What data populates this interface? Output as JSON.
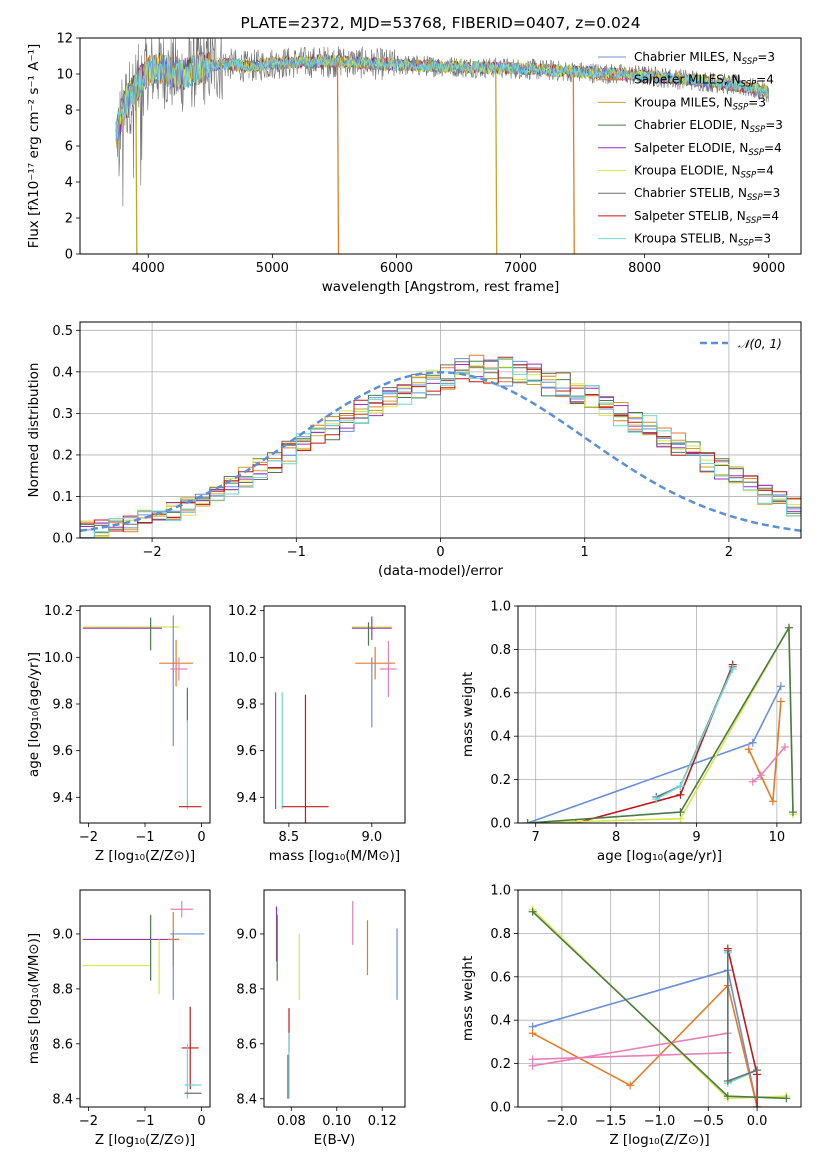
{
  "colors": {
    "Chabrier MILES": "#6a8fd8",
    "Salpeter MILES": "#e57b27",
    "Kroupa MILES": "#c9a227",
    "Chabrier ELODIE": "#4a7a4a",
    "Salpeter ELODIE": "#9a30c0",
    "Kroupa ELODIE": "#d8e84a",
    "Chabrier STELIB": "#707070",
    "Salpeter STELIB": "#c01818",
    "Kroupa STELIB": "#6fd6d6",
    "pink": "#e880b8",
    "gauss": "#5b8fd6"
  },
  "chart_data": [
    {
      "id": "spectrum",
      "type": "line",
      "title": "PLATE=2372, MJD=53768, FIBERID=0407, z=0.024",
      "xlabel": "wavelength [Angstrom, rest frame]",
      "ylabel": "Flux [fλ10⁻¹⁷ erg cm⁻² s⁻¹ A⁻¹]",
      "xlim": [
        3450,
        9260
      ],
      "ylim": [
        0,
        12
      ],
      "xticks": [
        4000,
        5000,
        6000,
        7000,
        8000,
        9000
      ],
      "yticks": [
        0,
        2,
        4,
        6,
        8,
        10,
        12
      ],
      "legend_position": "top-right",
      "continuum_x": [
        3740,
        3800,
        3900,
        4000,
        4100,
        4250,
        4400,
        4600,
        4800,
        5000,
        5500,
        6000,
        6500,
        7000,
        7500,
        8000,
        8500,
        8800,
        9000
      ],
      "continuum_y": [
        6.5,
        8.2,
        9.3,
        10.2,
        10.3,
        9.9,
        10.3,
        10.6,
        10.4,
        10.6,
        10.7,
        10.5,
        10.4,
        10.3,
        10.1,
        9.9,
        9.6,
        9.3,
        9.0
      ],
      "dropouts": [
        {
          "x": 3900,
          "to": 0,
          "series": "Kroupa MILES"
        },
        {
          "x": 5525,
          "to": 0,
          "series": "Salpeter MILES"
        },
        {
          "x": 6800,
          "to": 0,
          "series": "Kroupa MILES"
        },
        {
          "x": 7425,
          "to": 0,
          "series": "Salpeter MILES"
        }
      ],
      "legend": [
        {
          "name": "Chabrier MILES, N",
          "sub": "SSP",
          "suf": "=3"
        },
        {
          "name": "Salpeter MILES, N",
          "sub": "SSP",
          "suf": "=4"
        },
        {
          "name": "Kroupa MILES, N",
          "sub": "SSP",
          "suf": "=3"
        },
        {
          "name": "Chabrier ELODIE, N",
          "sub": "SSP",
          "suf": "=3"
        },
        {
          "name": "Salpeter ELODIE, N",
          "sub": "SSP",
          "suf": "=4"
        },
        {
          "name": "Kroupa ELODIE, N",
          "sub": "SSP",
          "suf": "=4"
        },
        {
          "name": "Chabrier STELIB, N",
          "sub": "SSP",
          "suf": "=3"
        },
        {
          "name": "Salpeter STELIB, N",
          "sub": "SSP",
          "suf": "=4"
        },
        {
          "name": "Kroupa STELIB, N",
          "sub": "SSP",
          "suf": "=3"
        }
      ]
    },
    {
      "id": "residuals",
      "type": "histogram",
      "xlabel": "(data-model)/error",
      "ylabel": "Normed distribution",
      "xlim": [
        -2.5,
        2.5
      ],
      "ylim": [
        0,
        0.52
      ],
      "xticks": [
        -2,
        -1,
        0,
        1,
        2
      ],
      "yticks": [
        0.0,
        0.1,
        0.2,
        0.3,
        0.4,
        0.5
      ],
      "grid": true,
      "bin_edges_start": -2.5,
      "bin_width": 0.1,
      "base_values": [
        0.02,
        0.025,
        0.03,
        0.035,
        0.045,
        0.055,
        0.065,
        0.075,
        0.09,
        0.105,
        0.125,
        0.145,
        0.165,
        0.185,
        0.205,
        0.225,
        0.245,
        0.265,
        0.285,
        0.305,
        0.32,
        0.335,
        0.35,
        0.365,
        0.375,
        0.39,
        0.4,
        0.405,
        0.405,
        0.4,
        0.395,
        0.385,
        0.375,
        0.365,
        0.35,
        0.335,
        0.32,
        0.3,
        0.285,
        0.265,
        0.245,
        0.225,
        0.205,
        0.185,
        0.165,
        0.145,
        0.125,
        0.105,
        0.09,
        0.075
      ],
      "gaussian_label": "𝒩(0, 1)",
      "legend_position": "top-right"
    },
    {
      "id": "age-Z",
      "type": "errorbar",
      "xlabel": "Z [log₁₀(Z/Z⊙)]",
      "ylabel": "age  [log₁₀(age/yr)]",
      "xlim": [
        -2.15,
        0.15
      ],
      "ylim": [
        9.29,
        10.22
      ],
      "xticks": [
        -2,
        -1,
        0
      ],
      "yticks": [
        9.4,
        9.6,
        9.8,
        10.0,
        10.2
      ],
      "points": [
        {
          "x": -1.25,
          "y": 10.13,
          "xerr": 0.85,
          "yerr": 0.0,
          "c": "Kroupa ELODIE"
        },
        {
          "x": -1.4,
          "y": 10.125,
          "xerr": 0.7,
          "yerr": 0.0,
          "c": "Salpeter ELODIE"
        },
        {
          "x": -0.9,
          "y": 10.1,
          "xerr": 0.0,
          "yerr": 0.07,
          "c": "Chabrier ELODIE"
        },
        {
          "x": -0.45,
          "y": 9.975,
          "xerr": 0.3,
          "yerr": 0.1,
          "c": "Salpeter MILES"
        },
        {
          "x": -0.5,
          "y": 9.9,
          "xerr": 0.0,
          "yerr": 0.28,
          "c": "Chabrier MILES"
        },
        {
          "x": -0.4,
          "y": 9.95,
          "xerr": 0.15,
          "yerr": 0.05,
          "c": "pink"
        },
        {
          "x": -0.25,
          "y": 9.6,
          "xerr": 0.0,
          "yerr": 0.25,
          "c": "Kroupa STELIB"
        },
        {
          "x": -0.2,
          "y": 9.36,
          "xerr": 0.2,
          "yerr": 0.0,
          "c": "Salpeter STELIB"
        },
        {
          "x": -0.25,
          "y": 9.8,
          "xerr": 0.0,
          "yerr": 0.07,
          "c": "Chabrier STELIB"
        }
      ]
    },
    {
      "id": "age-mass",
      "type": "errorbar",
      "xlabel": "mass [log₁₀(M/M⊙)]",
      "ylabel": "",
      "xlim": [
        8.35,
        9.2
      ],
      "ylim": [
        9.29,
        10.22
      ],
      "xticks": [
        8.5,
        9.0
      ],
      "yticks": [
        9.4,
        9.6,
        9.8,
        10.0,
        10.2
      ],
      "points": [
        {
          "x": 9.0,
          "y": 10.13,
          "xerr": 0.12,
          "yerr": 0.0,
          "c": "Kroupa ELODIE"
        },
        {
          "x": 9.0,
          "y": 10.125,
          "xerr": 0.12,
          "yerr": 0.05,
          "c": "Salpeter ELODIE"
        },
        {
          "x": 8.98,
          "y": 10.1,
          "xerr": 0.0,
          "yerr": 0.05,
          "c": "Chabrier ELODIE"
        },
        {
          "x": 9.02,
          "y": 9.975,
          "xerr": 0.12,
          "yerr": 0.07,
          "c": "Salpeter MILES"
        },
        {
          "x": 9.0,
          "y": 9.85,
          "xerr": 0.0,
          "yerr": 0.15,
          "c": "Chabrier MILES"
        },
        {
          "x": 9.1,
          "y": 9.95,
          "xerr": 0.05,
          "yerr": 0.12,
          "c": "pink"
        },
        {
          "x": 8.46,
          "y": 9.6,
          "xerr": 0.0,
          "yerr": 0.25,
          "c": "Kroupa STELIB"
        },
        {
          "x": 8.6,
          "y": 9.36,
          "xerr": 0.14,
          "yerr": 0.48,
          "c": "Salpeter STELIB"
        },
        {
          "x": 8.42,
          "y": 9.6,
          "xerr": 0.0,
          "yerr": 0.25,
          "c": "Chabrier STELIB"
        }
      ]
    },
    {
      "id": "weight-age",
      "type": "line",
      "xlabel": "age  [log₁₀(age/yr)]",
      "ylabel": "mass weight",
      "xlim": [
        6.78,
        10.3
      ],
      "ylim": [
        0,
        1.0
      ],
      "xticks": [
        7,
        8,
        9,
        10
      ],
      "yticks": [
        0.0,
        0.2,
        0.4,
        0.6,
        0.8,
        1.0
      ],
      "grid": true,
      "series": [
        {
          "c": "Chabrier MILES",
          "x": [
            6.9,
            9.7,
            10.05
          ],
          "y": [
            0.0,
            0.37,
            0.63
          ]
        },
        {
          "c": "Salpeter MILES",
          "x": [
            9.65,
            9.95,
            10.05
          ],
          "y": [
            0.34,
            0.1,
            0.56
          ]
        },
        {
          "c": "pink",
          "x": [
            9.7,
            9.8,
            10.1
          ],
          "y": [
            0.19,
            0.22,
            0.35
          ]
        },
        {
          "c": "Salpeter STELIB",
          "x": [
            7.5,
            8.8,
            9.45
          ],
          "y": [
            0.0,
            0.13,
            0.73
          ]
        },
        {
          "c": "Chabrier STELIB",
          "x": [
            8.5,
            8.8,
            9.45
          ],
          "y": [
            0.12,
            0.17,
            0.72
          ]
        },
        {
          "c": "Kroupa STELIB",
          "x": [
            8.5,
            8.8,
            9.45
          ],
          "y": [
            0.11,
            0.17,
            0.71
          ]
        },
        {
          "c": "Kroupa ELODIE",
          "x": [
            6.9,
            8.8,
            10.15,
            10.2
          ],
          "y": [
            0.0,
            0.02,
            0.9,
            0.04
          ]
        },
        {
          "c": "Chabrier ELODIE",
          "x": [
            6.9,
            8.8,
            10.15,
            10.2
          ],
          "y": [
            0.0,
            0.05,
            0.9,
            0.05
          ]
        }
      ]
    },
    {
      "id": "mass-Z",
      "type": "errorbar",
      "xlabel": "Z [log₁₀(Z/Z⊙)]",
      "ylabel": "mass [log₁₀(M/M⊙)]",
      "xlim": [
        -2.15,
        0.15
      ],
      "ylim": [
        8.37,
        9.16
      ],
      "xticks": [
        -2,
        -1,
        0
      ],
      "yticks": [
        8.4,
        8.6,
        8.8,
        9.0
      ],
      "points": [
        {
          "x": -1.25,
          "y": 8.98,
          "xerr": 0.85,
          "yerr": 0.0,
          "c": "Salpeter ELODIE"
        },
        {
          "x": -1.5,
          "y": 8.885,
          "xerr": 0.6,
          "yerr": 0.0,
          "c": "Kroupa ELODIE"
        },
        {
          "x": -0.9,
          "y": 8.95,
          "xerr": 0.0,
          "yerr": 0.12,
          "c": "Chabrier ELODIE"
        },
        {
          "x": -0.75,
          "y": 8.88,
          "xerr": 0.0,
          "yerr": 0.1,
          "c": "Kroupa ELODIE"
        },
        {
          "x": -0.5,
          "y": 8.98,
          "xerr": 0.1,
          "yerr": 0.1,
          "c": "Salpeter MILES"
        },
        {
          "x": -0.25,
          "y": 9.0,
          "xerr": 0.3,
          "yerr": 0.0,
          "c": "Chabrier MILES"
        },
        {
          "x": -0.5,
          "y": 8.88,
          "xerr": 0.0,
          "yerr": 0.12,
          "c": "Chabrier MILES"
        },
        {
          "x": -0.35,
          "y": 9.09,
          "xerr": 0.2,
          "yerr": 0.03,
          "c": "pink"
        },
        {
          "x": -0.2,
          "y": 8.585,
          "xerr": 0.15,
          "yerr": 0.15,
          "c": "Salpeter STELIB"
        },
        {
          "x": -0.15,
          "y": 8.45,
          "xerr": 0.15,
          "yerr": 0.0,
          "c": "Kroupa STELIB"
        },
        {
          "x": -0.25,
          "y": 8.5,
          "xerr": 0.0,
          "yerr": 0.1,
          "c": "Kroupa STELIB"
        },
        {
          "x": -0.15,
          "y": 8.42,
          "xerr": 0.15,
          "yerr": 0.0,
          "c": "Chabrier STELIB"
        }
      ]
    },
    {
      "id": "mass-EBV",
      "type": "errorbar",
      "xlabel": "E(B-V)",
      "ylabel": "",
      "xlim": [
        0.068,
        0.13
      ],
      "ylim": [
        8.37,
        9.16
      ],
      "xticks": [
        0.08,
        0.1,
        0.12
      ],
      "yticks": [
        8.4,
        8.6,
        8.8,
        9.0
      ],
      "points": [
        {
          "x": 0.0735,
          "y": 9.0,
          "xerr": 0.0,
          "yerr": 0.1,
          "c": "Salpeter ELODIE"
        },
        {
          "x": 0.0738,
          "y": 8.95,
          "xerr": 0.0,
          "yerr": 0.12,
          "c": "Chabrier ELODIE"
        },
        {
          "x": 0.0835,
          "y": 8.88,
          "xerr": 0.0,
          "yerr": 0.12,
          "c": "Kroupa ELODIE"
        },
        {
          "x": 0.079,
          "y": 8.65,
          "xerr": 0.0,
          "yerr": 0.08,
          "c": "Salpeter STELIB"
        },
        {
          "x": 0.079,
          "y": 8.52,
          "xerr": 0.0,
          "yerr": 0.12,
          "c": "Kroupa STELIB"
        },
        {
          "x": 0.0785,
          "y": 8.48,
          "xerr": 0.0,
          "yerr": 0.08,
          "c": "Chabrier STELIB"
        },
        {
          "x": 0.107,
          "y": 9.04,
          "xerr": 0.0,
          "yerr": 0.08,
          "c": "pink"
        },
        {
          "x": 0.1135,
          "y": 8.95,
          "xerr": 0.0,
          "yerr": 0.1,
          "c": "Salpeter MILES"
        },
        {
          "x": 0.1265,
          "y": 8.89,
          "xerr": 0.0,
          "yerr": 0.13,
          "c": "Chabrier MILES"
        }
      ]
    },
    {
      "id": "weight-Z",
      "type": "line",
      "xlabel": "Z [log₁₀(Z/Z⊙)]",
      "ylabel": "mass weight",
      "xlim": [
        -2.45,
        0.45
      ],
      "ylim": [
        0,
        1.0
      ],
      "xticks": [
        -2.0,
        -1.5,
        -1.0,
        -0.5,
        0.0
      ],
      "yticks": [
        0.0,
        0.2,
        0.4,
        0.6,
        0.8,
        1.0
      ],
      "grid": true,
      "series": [
        {
          "c": "Chabrier MILES",
          "x": [
            -2.3,
            -0.3,
            0.0
          ],
          "y": [
            0.37,
            0.63,
            0.0
          ]
        },
        {
          "c": "Salpeter MILES",
          "x": [
            -2.3,
            -1.3,
            -0.3,
            0.0
          ],
          "y": [
            0.34,
            0.1,
            0.56,
            0.0
          ]
        },
        {
          "c": "pink",
          "x": [
            -2.3,
            -0.3
          ],
          "y": [
            0.22,
            0.25
          ]
        },
        {
          "c": "pink",
          "x": [
            -2.3,
            -0.3
          ],
          "y": [
            0.19,
            0.34
          ]
        },
        {
          "c": "Salpeter STELIB",
          "x": [
            -0.3,
            0.0,
            0.0
          ],
          "y": [
            0.73,
            0.15,
            0.0
          ]
        },
        {
          "c": "Kroupa STELIB",
          "x": [
            -0.3,
            -0.3,
            0.0
          ],
          "y": [
            0.71,
            0.11,
            0.17
          ]
        },
        {
          "c": "Chabrier STELIB",
          "x": [
            -0.3,
            -0.3,
            0.0
          ],
          "y": [
            0.72,
            0.12,
            0.17
          ]
        },
        {
          "c": "Kroupa ELODIE",
          "x": [
            -2.3,
            -0.3,
            0.3
          ],
          "y": [
            0.91,
            0.04,
            0.05
          ]
        },
        {
          "c": "Chabrier ELODIE",
          "x": [
            -2.3,
            -0.3,
            0.3
          ],
          "y": [
            0.9,
            0.05,
            0.04
          ]
        }
      ]
    }
  ]
}
